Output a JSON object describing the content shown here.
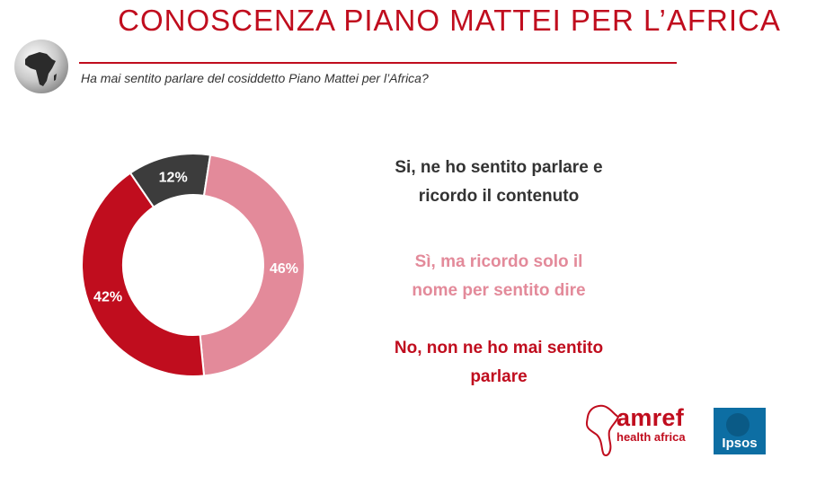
{
  "header": {
    "title": "CONOSCENZA PIANO MATTEI PER L’AFRICA",
    "subtitle": "Ha mai sentito parlare del cosiddetto Piano Mattei per l’Africa?"
  },
  "chart_data": {
    "type": "pie",
    "donut": true,
    "title": "",
    "categories": [
      "Sì, ne ho sentito parlare e ricordo il contenuto",
      "Sì, ma ricordo solo il nome per sentito dire",
      "No, non ne ho mai sentito parlare"
    ],
    "values": [
      12,
      46,
      42
    ],
    "labels": [
      "12%",
      "46%",
      "42%"
    ],
    "colors": [
      "#3c3c3c",
      "#e38a9a",
      "#c00d1e"
    ],
    "legend_placement": "right"
  },
  "legend": {
    "line1a": "Si, ne ho sentito parlare e",
    "line1b": "ricordo il contenuto",
    "line2a": "Sì, ma ricordo solo il",
    "line2b": "nome per sentito dire",
    "line3a": "No, non ne ho mai sentito",
    "line3b": "parlare"
  },
  "logos": {
    "amref_name": "amref",
    "amref_sub": "health africa",
    "ipsos": "Ipsos"
  }
}
